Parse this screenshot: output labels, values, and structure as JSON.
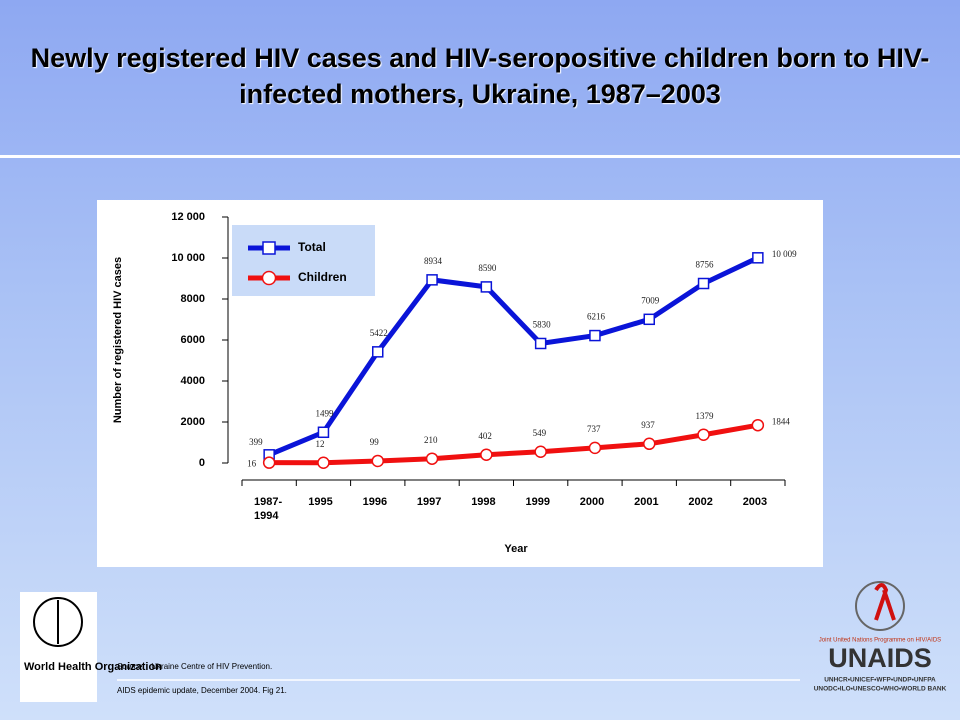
{
  "title": "Newly registered HIV cases and HIV-seropositive children born to HIV-infected mothers, Ukraine, 1987–2003",
  "chart_data": {
    "type": "line",
    "categories": [
      "1987- 1994",
      "1995",
      "1996",
      "1997",
      "1998",
      "1999",
      "2000",
      "2001",
      "2002",
      "2003"
    ],
    "series": [
      {
        "name": "Total",
        "color": "#0a14d8",
        "values": [
          399,
          1499,
          5422,
          8934,
          8590,
          5830,
          6216,
          7009,
          8756,
          10009
        ],
        "value_labels": [
          "399",
          "1499",
          "5422",
          "8934",
          "8590",
          "5830",
          "6216",
          "7009",
          "8756",
          "10 009"
        ]
      },
      {
        "name": "Children",
        "color": "#f01010",
        "values": [
          16,
          12,
          99,
          210,
          402,
          549,
          737,
          937,
          1379,
          1844
        ]
      }
    ],
    "ylim": [
      0,
      12000
    ],
    "yticks": [
      0,
      2000,
      4000,
      6000,
      8000,
      {
        "value": 10000,
        "label": "10 000"
      },
      {
        "value": 12000,
        "label": "12 000"
      }
    ],
    "ylabel": "Number of registered HIV cases",
    "xlabel": "Year",
    "legend": "top-left"
  },
  "source_label": "Source:",
  "source": "Ukraine Centre of HIV Prevention.",
  "footnote": "AIDS epidemic update, December 2004. Fig 21.",
  "who_logo": "World Health Organization",
  "unaids_logo": "UNAIDS",
  "unaids_tagline": "Joint United Nations Programme on HIV/AIDS",
  "unaids_members1": "UNHCR•UNICEF•WFP•UNDP•UNFPA",
  "unaids_members2": "UNODC•ILO•UNESCO•WHO•WORLD BANK"
}
